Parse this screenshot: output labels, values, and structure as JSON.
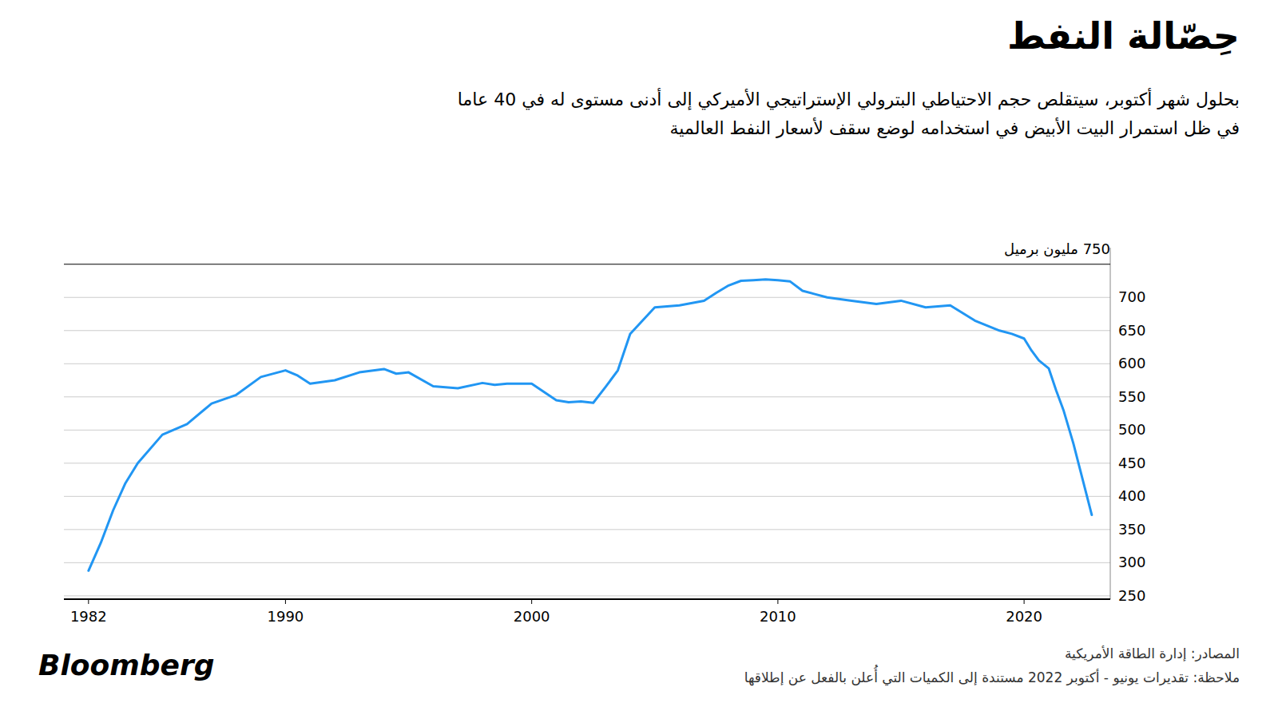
{
  "chart_data": {
    "type": "line",
    "title": "حِصّالة النفط",
    "subtitle": [
      "بحلول شهر أكتوبر، سيتقلص حجم الاحتياطي البترولي الإستراتيجي الأميركي إلى أدنى مستوى له في 40 عاما",
      "في ظل استمرار البيت الأبيض في استخدامه لوضع سقف لأسعار النفط العالمية"
    ],
    "annotations": [
      {
        "text": "750 مليون برميل",
        "y": 750
      }
    ],
    "source": [
      "المصادر: إدارة الطاقة الأمريكية",
      "ملاحظة: تقديرات يونيو - أكتوبر 2022 مستندة إلى الكميات التي أُعلن بالفعل عن إطلاقها"
    ],
    "credit": "Bloomberg",
    "x": [
      1982,
      1982.5,
      1983,
      1983.5,
      1984,
      1985,
      1986,
      1987,
      1988,
      1989,
      1990,
      1990.5,
      1991,
      1992,
      1993,
      1994,
      1994.5,
      1995,
      1996,
      1997,
      1998,
      1998.5,
      1999,
      2000,
      2001,
      2001.5,
      2002,
      2002.5,
      2003,
      2003.5,
      2004,
      2005,
      2006,
      2007,
      2007.5,
      2008,
      2008.5,
      2009,
      2009.5,
      2010,
      2010.5,
      2011,
      2011.5,
      2012,
      2013,
      2014,
      2015,
      2016,
      2017,
      2018,
      2019,
      2019.5,
      2020,
      2020.3,
      2020.6,
      2021,
      2021.3,
      2021.6,
      2022,
      2022.75
    ],
    "values": [
      288,
      330,
      379,
      420,
      450,
      493,
      509,
      540,
      553,
      580,
      590,
      582,
      570,
      575,
      587,
      592,
      585,
      587,
      566,
      563,
      571,
      568,
      570,
      570,
      545,
      542,
      543,
      541,
      565,
      590,
      645,
      685,
      688,
      695,
      707,
      718,
      725,
      726,
      727,
      726,
      724,
      710,
      705,
      700,
      695,
      690,
      695,
      685,
      688,
      665,
      650,
      645,
      638,
      620,
      605,
      593,
      560,
      530,
      480,
      372
    ],
    "color": "#2196F3",
    "xlim": [
      1981,
      2023.5
    ],
    "ylim": [
      245,
      775
    ],
    "xticks": [
      1982,
      1990,
      2000,
      2010,
      2020
    ],
    "yticks": [
      250,
      300,
      350,
      400,
      450,
      500,
      550,
      600,
      650,
      700
    ],
    "grid": true
  }
}
